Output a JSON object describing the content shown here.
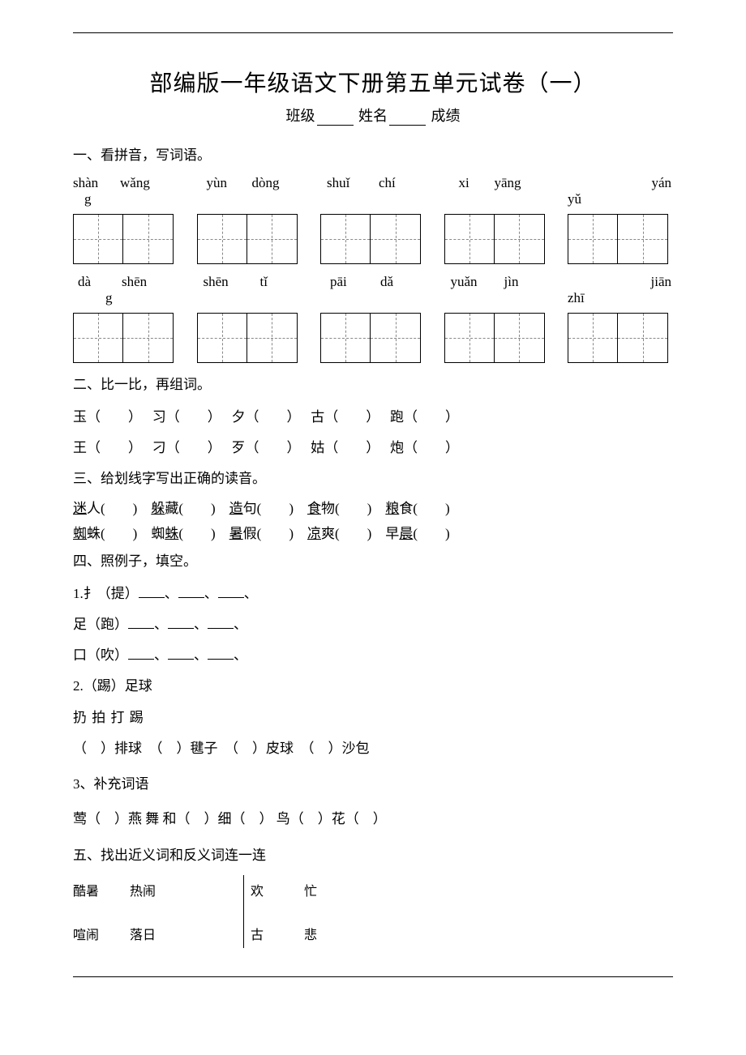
{
  "colors": {
    "text": "#000000",
    "bg": "#ffffff",
    "dash": "#888888"
  },
  "title": "部编版一年级语文下册第五单元试卷（一）",
  "subhead": {
    "class_label": "班级",
    "name_label": "姓名",
    "score_label": "成绩"
  },
  "sections": {
    "s1": "一、看拼音，写词语。",
    "s2": "二、比一比，再组词。",
    "s3": "三、给划线字写出正确的读音。",
    "s4": "四、照例子，填空。",
    "s4_3": "3、补充词语",
    "s5": "五、找出近义词和反义词连一连"
  },
  "pinyin_rows": [
    [
      {
        "a": "shàn",
        "b": "wǎng",
        "wrap": "g"
      },
      {
        "a": "yùn",
        "b": "dòng"
      },
      {
        "a": "shuǐ",
        "b": "chí"
      },
      {
        "a": "xi",
        "b": "yāng"
      },
      {
        "a": "yán",
        "c": "yǔ",
        "last": true
      }
    ],
    [
      {
        "a": "dà",
        "b": "shēn",
        "wrap": "g",
        "wrap_right": true
      },
      {
        "a": "shēn",
        "b": "tǐ"
      },
      {
        "a": "pāi",
        "b": "dǎ"
      },
      {
        "a": "yuǎn",
        "b": "jìn"
      },
      {
        "a": "jiān",
        "c": "zhī",
        "last": true
      }
    ]
  ],
  "q2": {
    "row1": [
      "玉（　　）",
      "习（　　）",
      "夕（　　）",
      "古（　　）",
      "跑（　　）"
    ],
    "row2": [
      "王（　　）",
      "刁（　　）",
      "歹（　　）",
      "姑（　　）",
      "炮（　　）"
    ]
  },
  "q3": {
    "row1": [
      {
        "u": "迷",
        "r": "人"
      },
      {
        "u": "躲",
        "r": "藏",
        "pre": ""
      },
      {
        "u": "造",
        "r": "句"
      },
      {
        "u": "食",
        "r": "物"
      },
      {
        "u": "粮",
        "r": "食"
      }
    ],
    "row2": [
      {
        "u": "蜘",
        "r": "蛛"
      },
      {
        "pre": "蜘",
        "u": "蛛",
        "r": ""
      },
      {
        "u": "暑",
        "r": "假"
      },
      {
        "u": "凉",
        "r": "爽"
      },
      {
        "pre": "早",
        "u": "晨",
        "r": ""
      }
    ]
  },
  "q4": {
    "l1": "1.扌（提）",
    "l2": " 足（跑）",
    "l3": " 口（吹）",
    "l4a": "2.（踢）足球",
    "l4b": "扔   拍   打   踢",
    "l4c": "（　）排球　（　）毽子　（　）皮球　（　）沙包",
    "l5": "莺（　）燕 舞  和（　）细（　） 鸟（　）花（　）"
  },
  "q5": {
    "left": [
      [
        "酷暑",
        "热闹"
      ],
      [
        "喧闹",
        "落日"
      ]
    ],
    "right": [
      [
        "欢",
        "忙"
      ],
      [
        "古",
        "悲"
      ]
    ]
  }
}
